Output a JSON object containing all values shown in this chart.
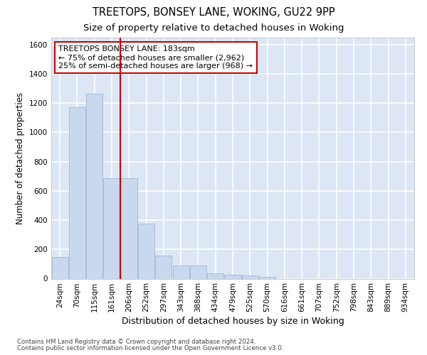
{
  "title": "TREETOPS, BONSEY LANE, WOKING, GU22 9PP",
  "subtitle": "Size of property relative to detached houses in Woking",
  "xlabel": "Distribution of detached houses by size in Woking",
  "ylabel": "Number of detached properties",
  "categories": [
    "24sqm",
    "70sqm",
    "115sqm",
    "161sqm",
    "206sqm",
    "252sqm",
    "297sqm",
    "343sqm",
    "388sqm",
    "434sqm",
    "479sqm",
    "525sqm",
    "570sqm",
    "616sqm",
    "661sqm",
    "707sqm",
    "752sqm",
    "798sqm",
    "843sqm",
    "889sqm",
    "934sqm"
  ],
  "values": [
    148,
    1170,
    1262,
    688,
    688,
    375,
    160,
    92,
    92,
    38,
    25,
    20,
    10,
    0,
    0,
    0,
    0,
    0,
    0,
    0,
    0
  ],
  "bar_color": "#c8d8ed",
  "bar_edge_color": "#a0b8d8",
  "vline_x": 3.5,
  "vline_color": "#cc0000",
  "annotation_text": "TREETOPS BONSEY LANE: 183sqm\n← 75% of detached houses are smaller (2,962)\n25% of semi-detached houses are larger (968) →",
  "annotation_box_color": "#ffffff",
  "annotation_edge_color": "#cc0000",
  "ylim": [
    0,
    1650
  ],
  "yticks": [
    0,
    200,
    400,
    600,
    800,
    1000,
    1200,
    1400,
    1600
  ],
  "background_color": "#dce6f5",
  "plot_bg_color": "#dce6f5",
  "fig_bg_color": "#ffffff",
  "grid_color": "#ffffff",
  "footer_line1": "Contains HM Land Registry data © Crown copyright and database right 2024.",
  "footer_line2": "Contains public sector information licensed under the Open Government Licence v3.0.",
  "title_fontsize": 10.5,
  "subtitle_fontsize": 9.5,
  "xlabel_fontsize": 9,
  "ylabel_fontsize": 8.5,
  "tick_fontsize": 7.5,
  "annot_fontsize": 8
}
